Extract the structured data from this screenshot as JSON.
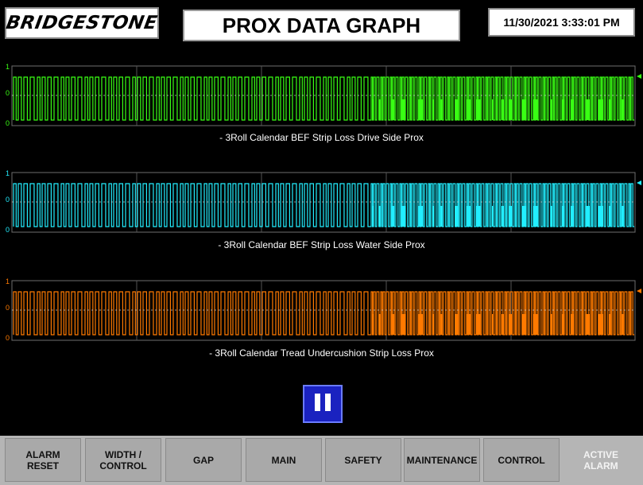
{
  "header": {
    "logo_text": "BRIDGESTONE",
    "title": "PROX DATA GRAPH",
    "datetime": "11/30/2021 3:33:01 PM"
  },
  "charts": [
    {
      "caption": "- 3Roll Calendar BEF Strip Loss Drive Side Prox",
      "color": "#39ff14",
      "y_ticks": [
        "1",
        "0",
        "0"
      ]
    },
    {
      "caption": "- 3Roll Calendar BEF Strip Loss Water Side Prox",
      "color": "#22eeff",
      "y_ticks": [
        "1",
        "0",
        "0"
      ]
    },
    {
      "caption": "- 3Roll Calendar Tread Undercushion Strip Loss Prox",
      "color": "#ff7a00",
      "y_ticks": [
        "1",
        "0",
        "0"
      ]
    }
  ],
  "chart_data": [
    {
      "type": "line",
      "title": "- 3Roll Calendar BEF Strip Loss Drive Side Prox",
      "ylim": [
        0,
        1
      ],
      "grid": true,
      "y_ticks": [
        "1",
        "0",
        "0"
      ]
    },
    {
      "type": "line",
      "title": "- 3Roll Calendar BEF Strip Loss Water Side Prox",
      "ylim": [
        0,
        1
      ],
      "grid": true,
      "y_ticks": [
        "1",
        "0",
        "0"
      ]
    },
    {
      "type": "line",
      "title": "- 3Roll Calendar Tread Undercushion Strip Loss Prox",
      "ylim": [
        0,
        1
      ],
      "grid": true,
      "y_ticks": [
        "1",
        "0",
        "0"
      ]
    }
  ],
  "controls": {
    "pause_icon": "pause-icon"
  },
  "nav": [
    {
      "label": "ALARM\nRESET",
      "active": false
    },
    {
      "label": "WIDTH /\nCONTROL",
      "active": false
    },
    {
      "label": "GAP",
      "active": false
    },
    {
      "label": "MAIN",
      "active": false
    },
    {
      "label": "SAFETY",
      "active": false
    },
    {
      "label": "MAINTENANCE",
      "active": false
    },
    {
      "label": "CONTROL",
      "active": false
    },
    {
      "label": "ACTIVE\nALARM",
      "active": true
    }
  ]
}
